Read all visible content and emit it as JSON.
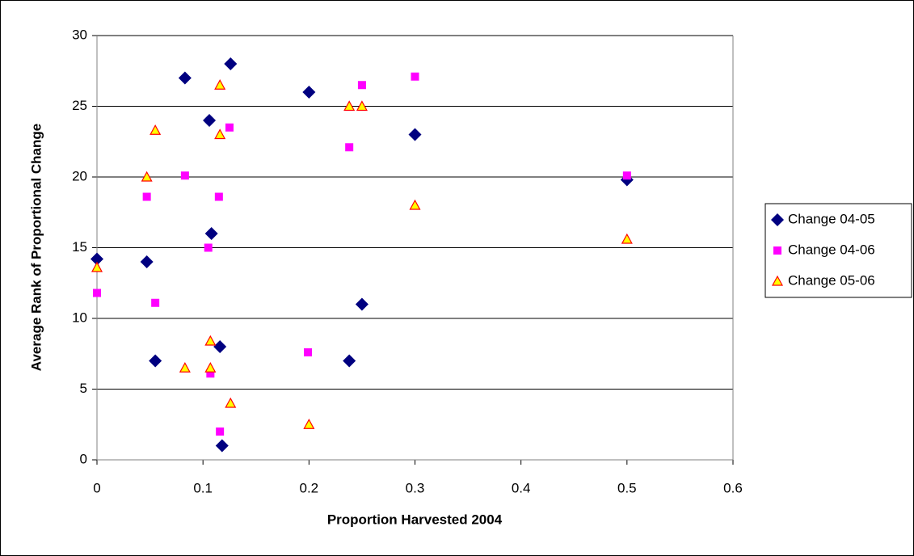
{
  "chart_data": {
    "type": "scatter",
    "x_label": "Proportion Harvested 2004",
    "y_label": "Average Rank of Proportional Change",
    "xlim": [
      0,
      0.6
    ],
    "xticks": [
      0,
      0.1,
      0.2,
      0.3,
      0.4,
      0.5,
      0.6
    ],
    "ylim": [
      0,
      30
    ],
    "yticks": [
      0,
      5,
      10,
      15,
      20,
      25,
      30
    ],
    "grid": true,
    "legend": "right",
    "series": [
      {
        "name": "Change 04-05",
        "color": "#000080",
        "marker": "diamond",
        "x": [
          0,
          0.047,
          0.055,
          0.083,
          0.106,
          0.108,
          0.116,
          0.118,
          0.126,
          0.2,
          0.238,
          0.25,
          0.3,
          0.5
        ],
        "values": [
          14.2,
          14,
          7,
          27,
          24,
          16,
          8,
          1,
          28,
          26,
          7,
          11,
          23,
          19.8
        ]
      },
      {
        "name": "Change 04-06",
        "color": "#ff00ff",
        "marker": "square",
        "x": [
          0,
          0.047,
          0.055,
          0.083,
          0.105,
          0.107,
          0.115,
          0.116,
          0.125,
          0.199,
          0.238,
          0.25,
          0.3,
          0.5
        ],
        "values": [
          11.8,
          18.6,
          11.1,
          20.1,
          15,
          6.1,
          18.6,
          2,
          23.5,
          7.6,
          22.1,
          26.5,
          27.1,
          20.1
        ]
      },
      {
        "name": "Change 05-06",
        "color": "#ffff00",
        "edge_color": "#ff0000",
        "marker": "triangle",
        "x": [
          0,
          0.047,
          0.055,
          0.083,
          0.107,
          0.107,
          0.116,
          0.116,
          0.126,
          0.2,
          0.238,
          0.25,
          0.3,
          0.5
        ],
        "values": [
          13.6,
          20,
          23.3,
          6.5,
          8.4,
          6.5,
          26.5,
          23,
          4,
          2.5,
          25,
          25,
          18,
          15.6
        ]
      }
    ]
  }
}
